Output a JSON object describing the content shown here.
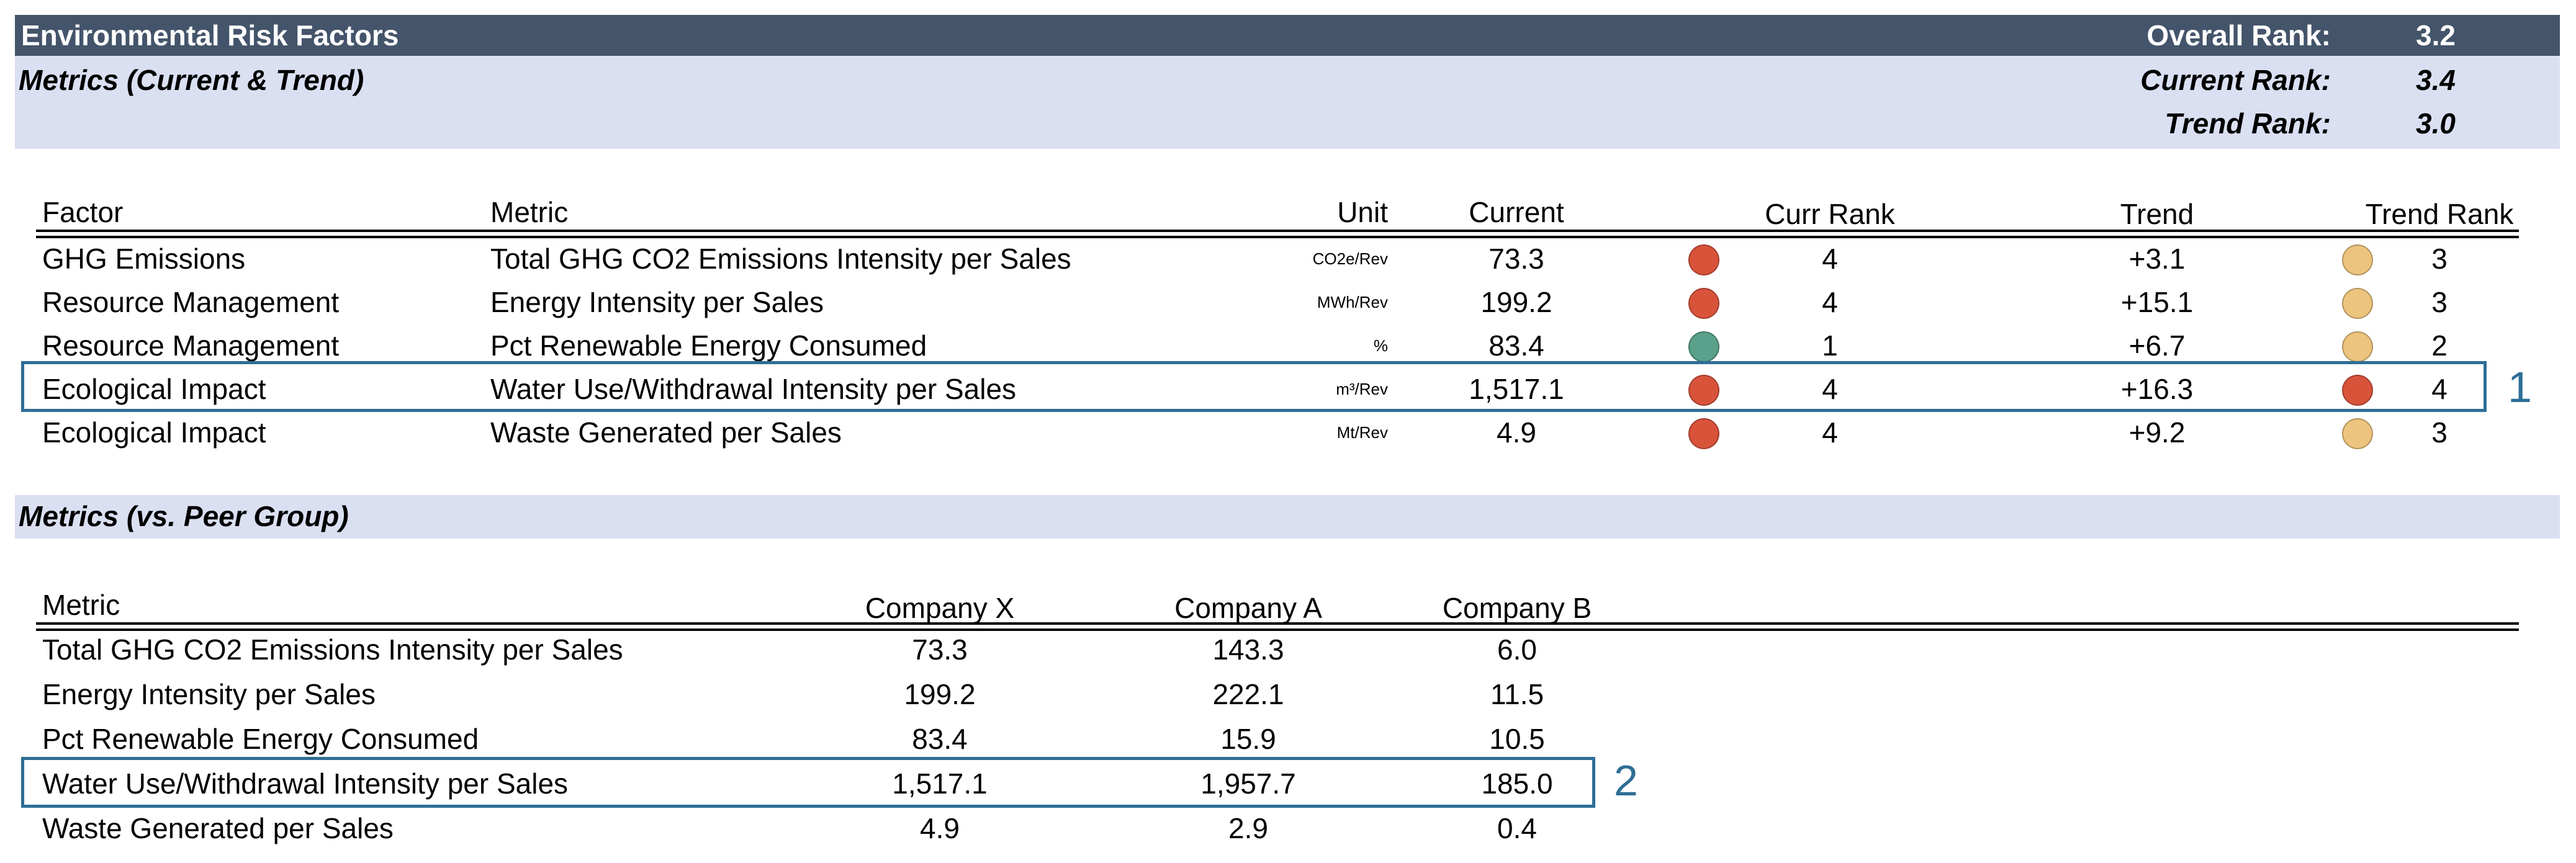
{
  "header": {
    "title": "Environmental Risk Factors",
    "overall_rank_label": "Overall Rank:",
    "overall_rank_value": "3.2",
    "subtitle": "Metrics (Current & Trend)",
    "current_rank_label": "Current Rank:",
    "current_rank_value": "3.4",
    "trend_rank_label": "Trend Rank:",
    "trend_rank_value": "3.0"
  },
  "metrics_table": {
    "columns": [
      "Factor",
      "Metric",
      "Unit",
      "Current",
      "Curr Rank",
      "Trend",
      "Trend Rank"
    ],
    "rows": [
      {
        "factor": "GHG Emissions",
        "metric": "Total GHG CO2 Emissions Intensity per Sales",
        "unit": "CO2e/Rev",
        "current": "73.3",
        "curr_rank": "4",
        "curr_color": "#d9533b",
        "trend": "+3.1",
        "trend_rank": "3",
        "trend_color": "#ecc47e"
      },
      {
        "factor": "Resource Management",
        "metric": "Energy Intensity per Sales",
        "unit": "MWh/Rev",
        "current": "199.2",
        "curr_rank": "4",
        "curr_color": "#d9533b",
        "trend": "+15.1",
        "trend_rank": "3",
        "trend_color": "#ecc47e"
      },
      {
        "factor": "Resource Management",
        "metric": "Pct Renewable Energy Consumed",
        "unit": "%",
        "current": "83.4",
        "curr_rank": "1",
        "curr_color": "#5aa08a",
        "trend": "+6.7",
        "trend_rank": "2",
        "trend_color": "#ecc47e"
      },
      {
        "factor": "Ecological Impact",
        "metric": "Water Use/Withdrawal Intensity per Sales",
        "unit": "m³/Rev",
        "current": "1,517.1",
        "curr_rank": "4",
        "curr_color": "#d9533b",
        "trend": "+16.3",
        "trend_rank": "4",
        "trend_color": "#d9533b"
      },
      {
        "factor": "Ecological Impact",
        "metric": "Waste Generated per Sales",
        "unit": "Mt/Rev",
        "current": "4.9",
        "curr_rank": "4",
        "curr_color": "#d9533b",
        "trend": "+9.2",
        "trend_rank": "3",
        "trend_color": "#ecc47e"
      }
    ],
    "highlight_label": "1"
  },
  "peer_section": {
    "title": "Metrics (vs. Peer Group)",
    "columns": [
      "Metric",
      "Company X",
      "Company A",
      "Company B"
    ],
    "rows": [
      {
        "metric": "Total GHG CO2 Emissions Intensity per Sales",
        "x": "73.3",
        "a": "143.3",
        "b": "6.0"
      },
      {
        "metric": "Energy Intensity per Sales",
        "x": "199.2",
        "a": "222.1",
        "b": "11.5"
      },
      {
        "metric": "Pct Renewable Energy Consumed",
        "x": "83.4",
        "a": "15.9",
        "b": "10.5"
      },
      {
        "metric": "Water Use/Withdrawal Intensity per Sales",
        "x": "1,517.1",
        "a": "1,957.7",
        "b": "185.0"
      },
      {
        "metric": "Waste Generated per Sales",
        "x": "4.9",
        "a": "2.9",
        "b": "0.4"
      }
    ],
    "highlight_label": "2"
  },
  "colors": {
    "header_bg": "#44546a",
    "band_bg": "#dae0f2",
    "highlight_border": "#2e6e96",
    "rank_red": "#d9533b",
    "rank_amber": "#ecc47e",
    "rank_green": "#5aa08a"
  }
}
